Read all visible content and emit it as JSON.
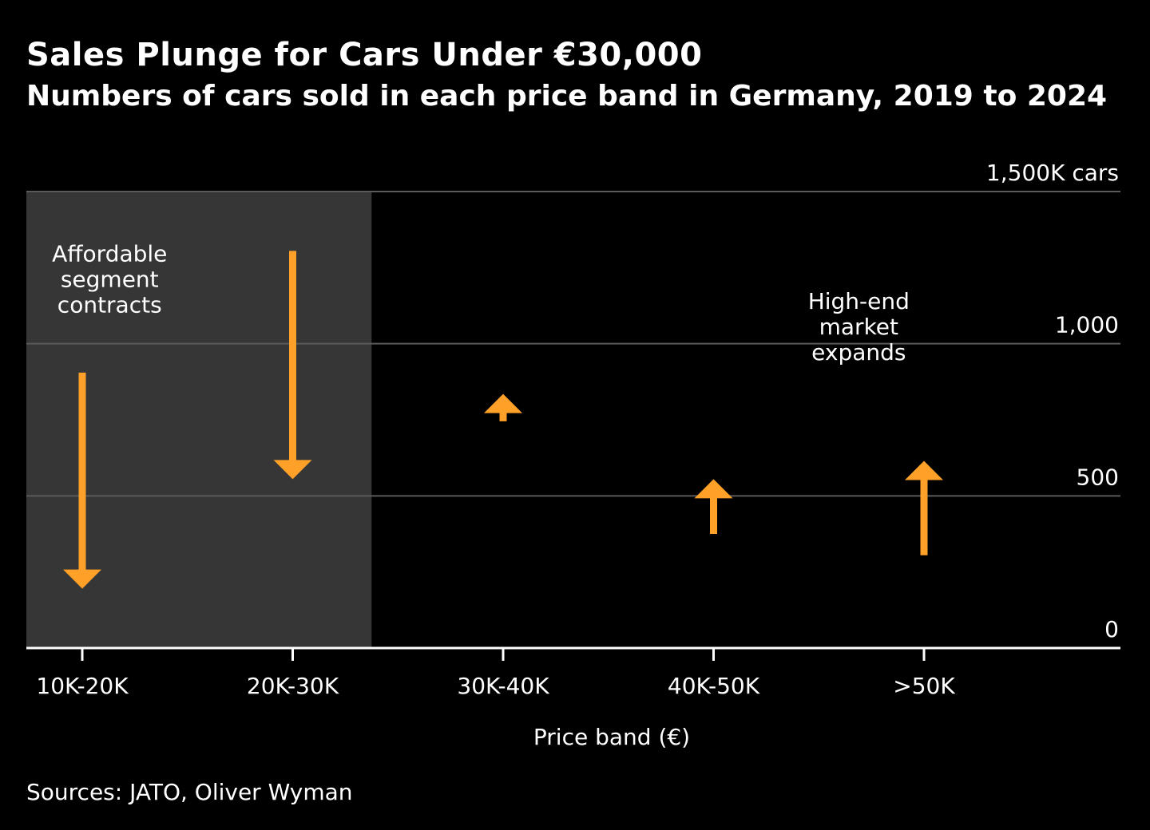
{
  "chart_data": {
    "type": "arrow",
    "title": "Sales Plunge for Cars Under €30,000",
    "subtitle": "Numbers of cars sold in each price band in Germany, 2019 to 2024",
    "categories": [
      "10K-20K",
      "20K-30K",
      "30K-40K",
      "40K-50K",
      ">50K"
    ],
    "series": [
      {
        "name": "2019",
        "values": [
          905,
          1305,
          745,
          375,
          305
        ]
      },
      {
        "name": "2024",
        "values": [
          195,
          555,
          835,
          555,
          615
        ]
      }
    ],
    "xlabel": "Price band (€)",
    "ylabel": "cars",
    "ylim": [
      0,
      1500
    ],
    "yticks": [
      {
        "value": 0,
        "label": "0"
      },
      {
        "value": 500,
        "label": "500"
      },
      {
        "value": 1000,
        "label": "1,000"
      },
      {
        "value": 1500,
        "label": "1,500K cars"
      }
    ],
    "highlight": {
      "from_category": 0,
      "to_category": 1,
      "color": "#363636"
    },
    "annotations": [
      {
        "lines": [
          "Affordable",
          "segment",
          "contracts"
        ],
        "category": 0.13,
        "value": 1270
      },
      {
        "lines": [
          "High-end",
          "market",
          "expands"
        ],
        "category": 3.69,
        "value": 1115
      }
    ],
    "grid": true,
    "colors": {
      "arrow": "#ffa028",
      "grid": "#5a5a5a",
      "axis": "#ffffff",
      "background": "#000000"
    }
  },
  "source": "Sources: JATO, Oliver Wyman"
}
